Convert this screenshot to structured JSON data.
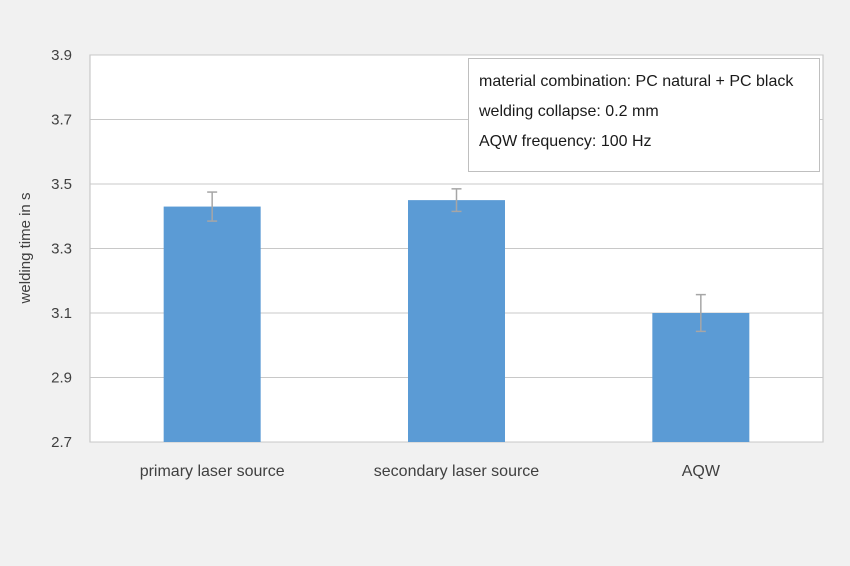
{
  "chart_data": {
    "type": "bar",
    "categories": [
      "primary laser source",
      "secondary laser source",
      "AQW"
    ],
    "values": [
      3.43,
      3.45,
      3.1
    ],
    "error": [
      0.045,
      0.035,
      0.057
    ],
    "ylabel": "welding time in s",
    "xlabel": "",
    "ylim": [
      2.7,
      3.9
    ],
    "yticks": [
      "3.9",
      "3.7",
      "3.5",
      "3.3",
      "3.1",
      "2.9",
      "2.7"
    ],
    "grid": true,
    "bar_color": "#5b9bd5",
    "annotation": [
      "material combination: PC natural + PC black",
      "welding collapse: 0.2 mm",
      "AQW frequency: 100 Hz"
    ]
  }
}
